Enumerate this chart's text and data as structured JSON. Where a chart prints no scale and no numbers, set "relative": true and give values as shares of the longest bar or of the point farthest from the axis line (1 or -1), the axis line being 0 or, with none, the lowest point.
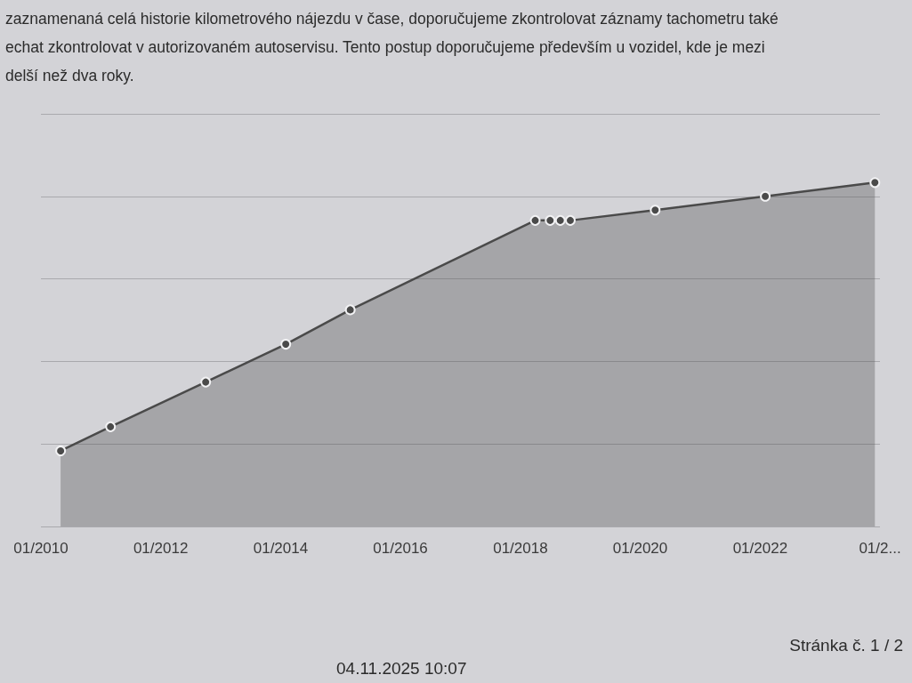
{
  "chart_data": {
    "type": "area",
    "relative": true,
    "annotations": [
      "zaznamenaná celá historie kilometrového nájezdu v čase, doporučujeme zkontrolovat záznamy tachometru také",
      "echat zkontrolovat v autorizovaném autoservisu. Tento postup doporučujeme především u vozidel, kde je mezi",
      "delší než dva roky.",
      "Stránka č. 1 / 2",
      "04.11.2025 10:07"
    ],
    "x": [
      "2010-05",
      "2011-03",
      "2012-10",
      "2014-02",
      "2015-03",
      "2018-04",
      "2018-07",
      "2018-09",
      "2018-11",
      "2020-04",
      "2022-02",
      "2023-12"
    ],
    "values": [
      0.22,
      0.29,
      0.42,
      0.53,
      0.63,
      0.89,
      0.89,
      0.89,
      0.89,
      0.92,
      0.96,
      1
    ],
    "color": "#4a4a4a",
    "xlim": [
      "2010-01",
      "2024-01"
    ],
    "xticks": [
      {
        "value": "2010-01",
        "label": "01/2010"
      },
      {
        "value": "2012-01",
        "label": "01/2012"
      },
      {
        "value": "2014-01",
        "label": "01/2014"
      },
      {
        "value": "2016-01",
        "label": "01/2016"
      },
      {
        "value": "2018-01",
        "label": "01/2018"
      },
      {
        "value": "2020-01",
        "label": "01/2020"
      },
      {
        "value": "2022-01",
        "label": "01/2022"
      },
      {
        "value": "2024-01",
        "label": "01/2..."
      }
    ],
    "grid": "y",
    "marker": "circle",
    "tick_labels": "x"
  }
}
